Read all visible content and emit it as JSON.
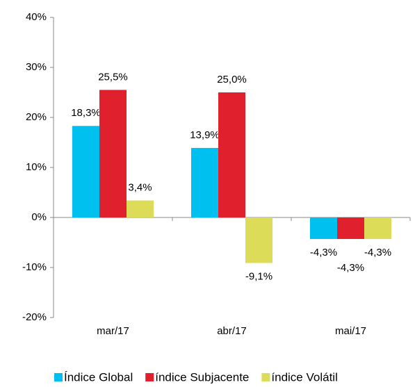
{
  "chart_data": {
    "type": "bar",
    "categories": [
      "mar/17",
      "abr/17",
      "mai/17"
    ],
    "series": [
      {
        "name": "Índice Global",
        "color": "#00c0f0",
        "values": [
          18.3,
          13.9,
          -4.3
        ],
        "value_labels": [
          "18,3%",
          "13,9%",
          "-4,3%"
        ]
      },
      {
        "name": "índice Subjacente",
        "color": "#e0202c",
        "values": [
          25.5,
          25.0,
          -4.3
        ],
        "value_labels": [
          "25,5%",
          "25,0%",
          "-4,3%"
        ]
      },
      {
        "name": "índice Volátil",
        "color": "#dcdc58",
        "values": [
          3.4,
          -9.1,
          -4.3
        ],
        "value_labels": [
          "3,4%",
          "-9,1%",
          "-4,3%"
        ]
      }
    ],
    "ylim": [
      -20,
      40
    ],
    "yticks": [
      {
        "value": -20,
        "label": "-20%"
      },
      {
        "value": -10,
        "label": "-10%"
      },
      {
        "value": 0,
        "label": "0%"
      },
      {
        "value": 10,
        "label": "10%"
      },
      {
        "value": 20,
        "label": "20%"
      },
      {
        "value": 30,
        "label": "30%"
      },
      {
        "value": 40,
        "label": "40%"
      }
    ],
    "grid": false
  }
}
